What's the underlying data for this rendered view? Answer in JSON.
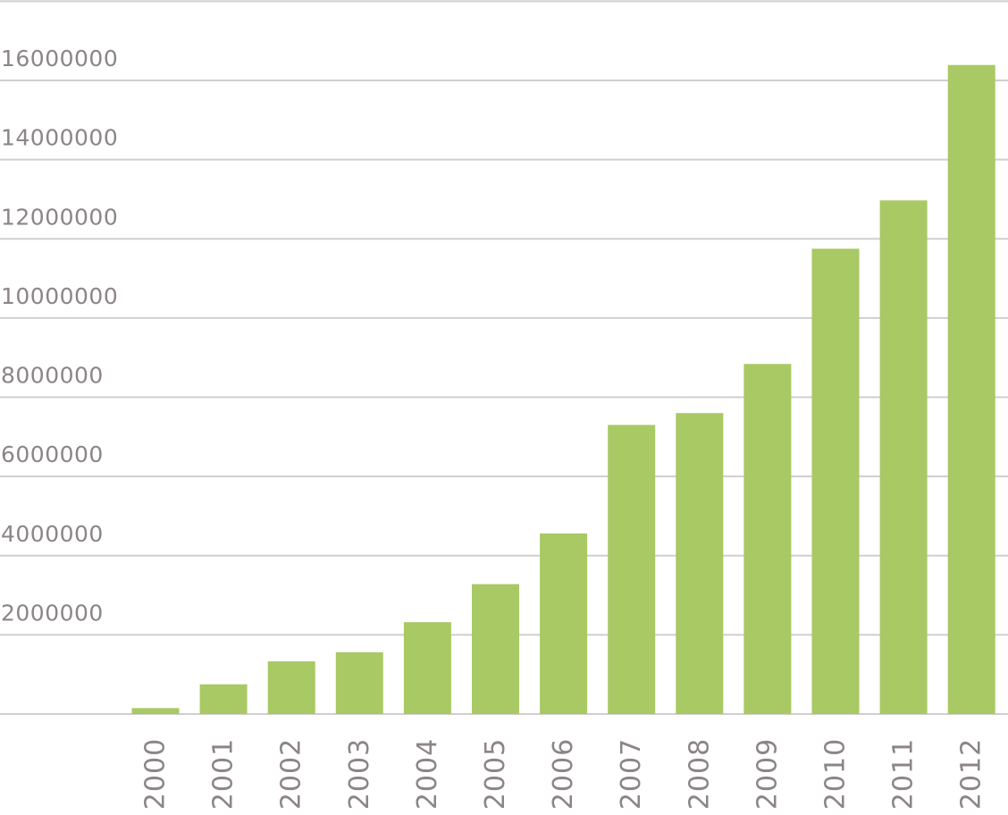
{
  "chart_data": {
    "type": "bar",
    "title": "",
    "xlabel": "",
    "ylabel": "",
    "categories": [
      "2000",
      "2001",
      "2002",
      "2003",
      "2004",
      "2005",
      "2006",
      "2007",
      "2008",
      "2009",
      "2010",
      "2011",
      "2012"
    ],
    "values": [
      150000,
      750000,
      1330000,
      1560000,
      2320000,
      3280000,
      4560000,
      7300000,
      7600000,
      8840000,
      11750000,
      12970000,
      16390000
    ],
    "ylim": [
      0,
      18000000
    ],
    "y_ticks": [
      {
        "value": 2000000,
        "label": "2000000"
      },
      {
        "value": 4000000,
        "label": "4000000"
      },
      {
        "value": 6000000,
        "label": "6000000"
      },
      {
        "value": 8000000,
        "label": "8000000"
      },
      {
        "value": 10000000,
        "label": "10000000"
      },
      {
        "value": 12000000,
        "label": "12000000"
      },
      {
        "value": 14000000,
        "label": "14000000"
      },
      {
        "value": 16000000,
        "label": "16000000"
      }
    ],
    "grid": true,
    "legend": "none",
    "colors": {
      "bar": "#a8c964",
      "grid": "#cfcfcf",
      "text": "#8c8588"
    }
  }
}
